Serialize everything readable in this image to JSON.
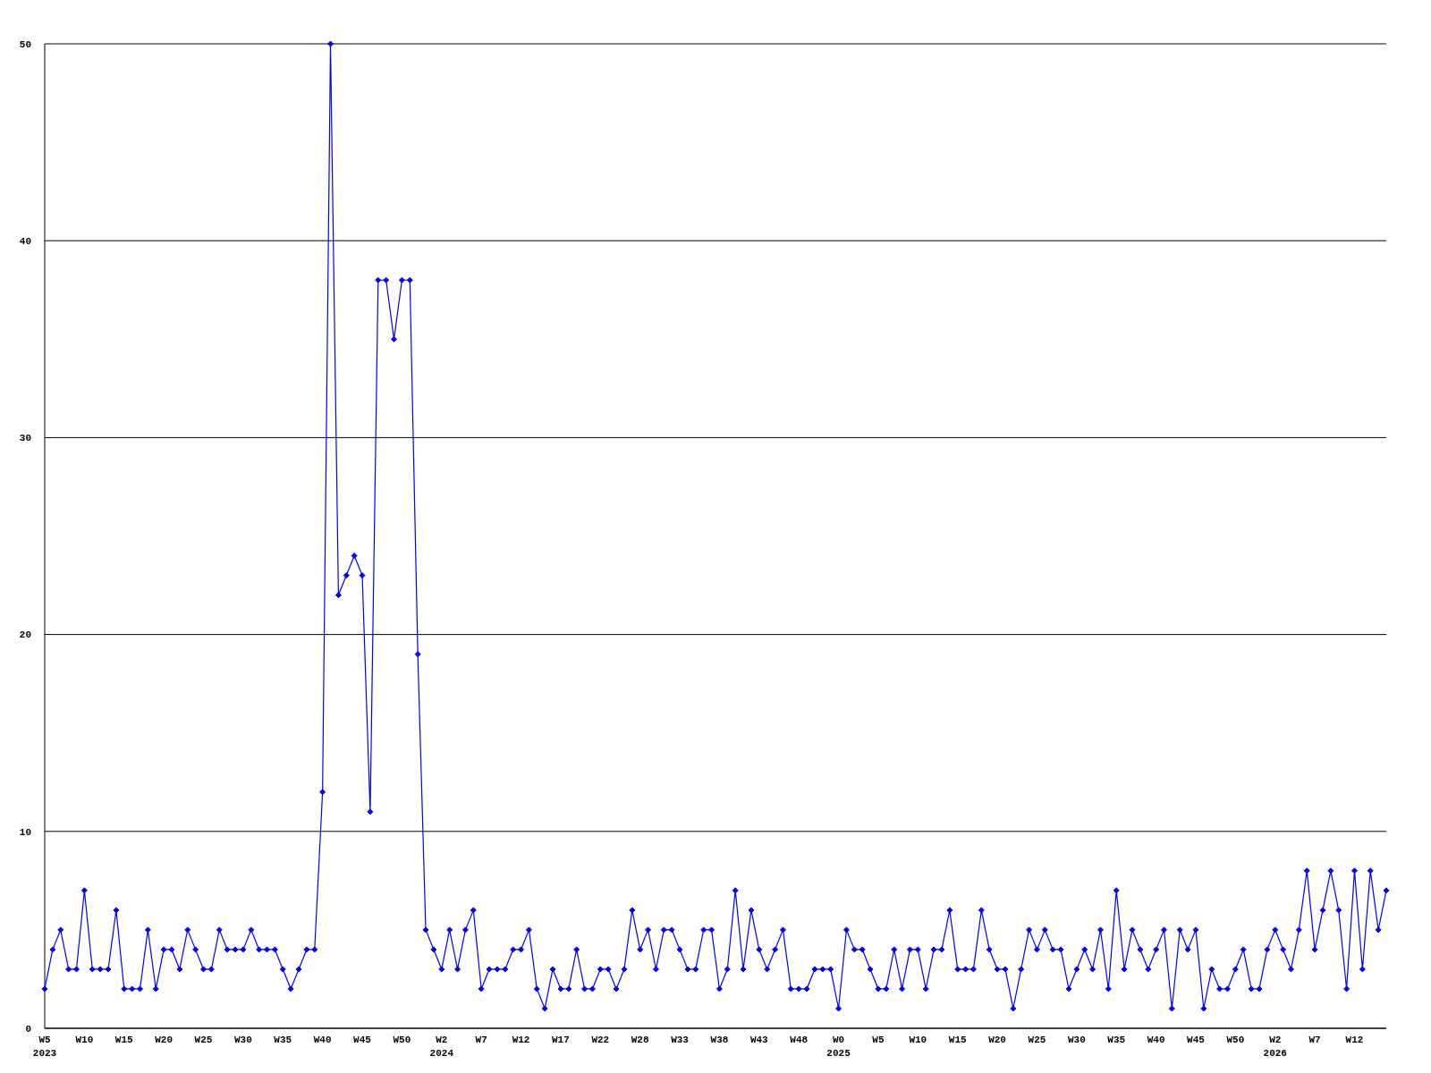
{
  "chart_data": {
    "type": "line",
    "categories": [
      "W5 2023",
      null,
      null,
      null,
      null,
      "W10",
      null,
      null,
      null,
      null,
      "W15",
      null,
      null,
      null,
      null,
      "W20",
      null,
      null,
      null,
      null,
      "W25",
      null,
      null,
      null,
      null,
      "W30",
      null,
      null,
      null,
      null,
      "W35",
      null,
      null,
      null,
      null,
      "W40",
      null,
      null,
      null,
      null,
      "W45",
      null,
      null,
      null,
      null,
      "W50",
      null,
      null,
      null,
      null,
      "W2 2024",
      null,
      null,
      null,
      null,
      "W7",
      null,
      null,
      null,
      null,
      "W12",
      null,
      null,
      null,
      null,
      "W17",
      null,
      null,
      null,
      null,
      "W22",
      null,
      null,
      null,
      null,
      "W28",
      null,
      null,
      null,
      null,
      "W33",
      null,
      null,
      null,
      null,
      "W38",
      null,
      null,
      null,
      null,
      "W43",
      null,
      null,
      null,
      null,
      "W48",
      null,
      null,
      null,
      null,
      "W0 2025",
      null,
      null,
      null,
      null,
      "W5",
      null,
      null,
      null,
      null,
      "W10",
      null,
      null,
      null,
      null,
      "W15",
      null,
      null,
      null,
      null,
      "W20",
      null,
      null,
      null,
      null,
      "W25",
      null,
      null,
      null,
      null,
      "W30",
      null,
      null,
      null,
      null,
      "W35",
      null,
      null,
      null,
      null,
      "W40",
      null,
      null,
      null,
      null,
      "W45",
      null,
      null,
      null,
      null,
      "W50",
      null,
      null,
      null,
      null,
      "W2 2026",
      null,
      null,
      null,
      null,
      "W7",
      null,
      null,
      null,
      null,
      "W12",
      null,
      null,
      null,
      null
    ],
    "series": [
      {
        "color": "#0000ff",
        "values": [
          2,
          4,
          5,
          3,
          3,
          7,
          3,
          3,
          3,
          6,
          2,
          2,
          2,
          5,
          2,
          4,
          4,
          3,
          5,
          4,
          3,
          3,
          5,
          4,
          4,
          4,
          5,
          4,
          4,
          4,
          3,
          2,
          3,
          4,
          4,
          12,
          50,
          22,
          23,
          24,
          23,
          11,
          38,
          38,
          35,
          38,
          38,
          19,
          5,
          4,
          3,
          5,
          3,
          5,
          6,
          2,
          3,
          3,
          3,
          4,
          4,
          5,
          2,
          1,
          3,
          2,
          2,
          4,
          2,
          2,
          3,
          3,
          2,
          3,
          6,
          4,
          5,
          3,
          5,
          5,
          4,
          3,
          3,
          5,
          5,
          2,
          3,
          7,
          3,
          6,
          4,
          3,
          4,
          5,
          2,
          2,
          2,
          3,
          3,
          3,
          1,
          5,
          4,
          4,
          3,
          2,
          2,
          4,
          2,
          4,
          4,
          2,
          4,
          4,
          6,
          3,
          3,
          3,
          6,
          4,
          3,
          3,
          1,
          3,
          5,
          4,
          5,
          4,
          4,
          2,
          3,
          4,
          3,
          5,
          2,
          7,
          3,
          5,
          4,
          3,
          4,
          5,
          1,
          5,
          4,
          5,
          1,
          3,
          2,
          2,
          3,
          4,
          2,
          2,
          4,
          5,
          4,
          3,
          5,
          8,
          4,
          6,
          8,
          6,
          2,
          8,
          3,
          8,
          5,
          7
        ]
      }
    ],
    "ylim": [
      0,
      50
    ],
    "yticks": [
      0,
      10,
      20,
      30,
      40,
      50
    ],
    "grid": "y",
    "marker": "diamond",
    "line_style": "solid"
  }
}
